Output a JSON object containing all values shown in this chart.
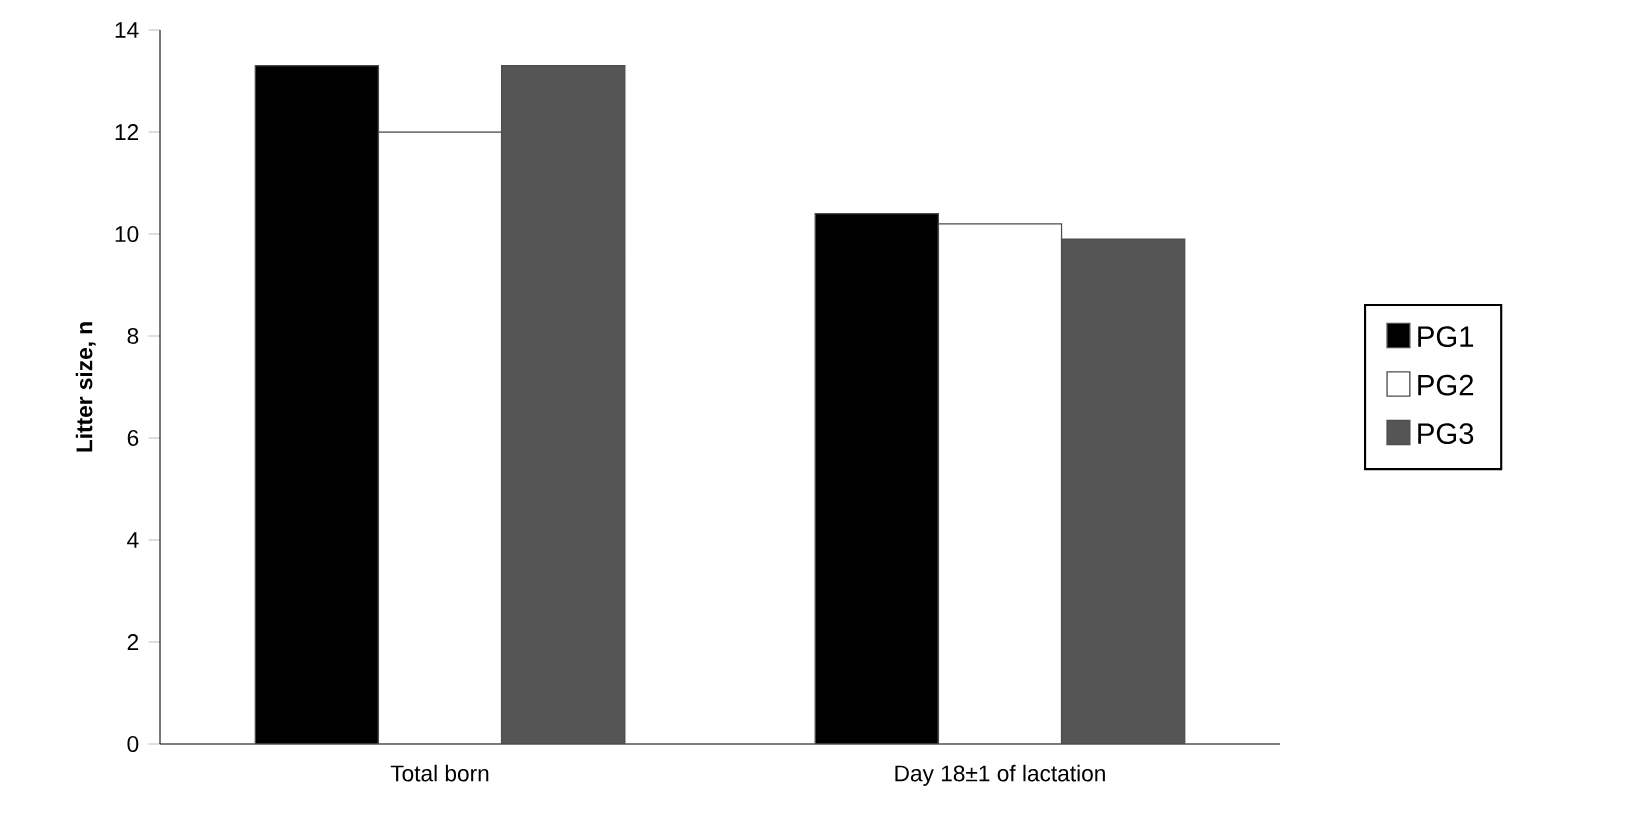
{
  "chart_data": {
    "type": "bar",
    "ylabel": "Litter size, n",
    "categories": [
      "Total born",
      "Day 18±1  of lactation"
    ],
    "series": [
      {
        "name": "PG1",
        "color": "#000000",
        "values": [
          13.3,
          10.4
        ]
      },
      {
        "name": "PG2",
        "color": "#ffffff",
        "values": [
          12.0,
          10.2
        ]
      },
      {
        "name": "PG3",
        "color": "#555555",
        "values": [
          13.3,
          9.9
        ]
      }
    ],
    "ylim": [
      0,
      14
    ],
    "yticks": [
      0,
      2,
      4,
      6,
      8,
      10,
      12,
      14
    ],
    "grid": false,
    "legend": "right"
  }
}
